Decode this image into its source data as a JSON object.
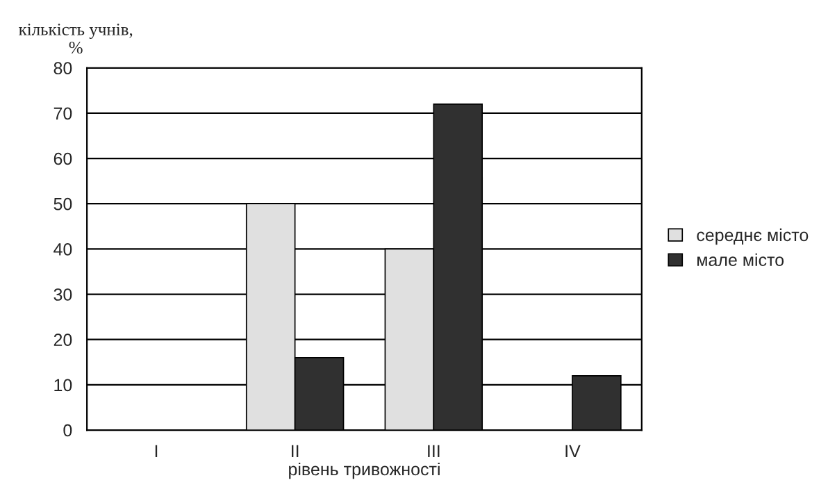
{
  "chart_data": {
    "type": "bar",
    "ylabel": "кількість учнів,\n%",
    "xlabel": "рівень тривожності",
    "categories": [
      "I",
      "II",
      "III",
      "IV"
    ],
    "series": [
      {
        "name": "середнє місто",
        "color": "#e0e0e0",
        "values": [
          null,
          50,
          40,
          null
        ]
      },
      {
        "name": "мале місто",
        "color": "#303030",
        "values": [
          null,
          16,
          72,
          12
        ]
      }
    ],
    "ylim": [
      0,
      80
    ],
    "yticks": [
      0,
      10,
      20,
      30,
      40,
      50,
      60,
      70,
      80
    ],
    "grid": "y",
    "legend": "right"
  }
}
